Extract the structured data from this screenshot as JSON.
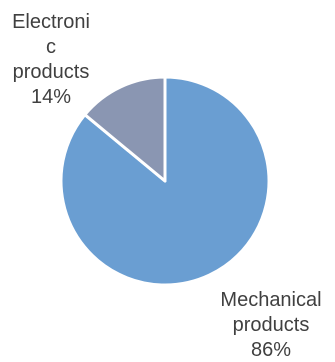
{
  "chart_data": {
    "type": "pie",
    "slices": [
      {
        "name": "Mechanical products",
        "value": 86,
        "color": "#6A9ED2",
        "label_lines": [
          "Mechanical",
          "products",
          "86%"
        ]
      },
      {
        "name": "Electronic products",
        "value": 14,
        "color": "#8A96B2",
        "label_lines": [
          "Electroni",
          "c",
          "products",
          "14%"
        ]
      }
    ],
    "start_angle_deg": 0,
    "direction": "clockwise",
    "slice_border_color": "#FFFFFF",
    "legend": "none"
  }
}
